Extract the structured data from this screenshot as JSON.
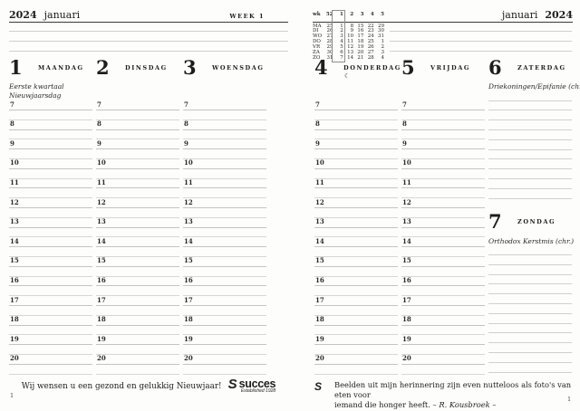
{
  "left_page": {
    "header": {
      "year": "2024",
      "month": "januari",
      "week_label": "WEEK 1"
    },
    "note_line_count": 3,
    "footer": {
      "message": "Wij wensen u een gezond en gelukkig Nieuwjaar!",
      "logo_icon": "S",
      "logo_name": "succes",
      "logo_established": "Established 1928"
    },
    "page_number": "1"
  },
  "right_page": {
    "header": {
      "month": "januari",
      "year": "2024"
    },
    "note_line_count": 3,
    "mini_calendar": {
      "week_header": {
        "label": "wk",
        "values": [
          "52",
          "1",
          "2",
          "3",
          "4",
          "5"
        ]
      },
      "rows": [
        {
          "label": "MA",
          "values": [
            "25",
            "1",
            "8",
            "15",
            "22",
            "29"
          ]
        },
        {
          "label": "DI",
          "values": [
            "26",
            "2",
            "9",
            "16",
            "23",
            "30"
          ]
        },
        {
          "label": "WO",
          "values": [
            "27",
            "3",
            "10",
            "17",
            "24",
            "31"
          ]
        },
        {
          "label": "DO",
          "values": [
            "28",
            "4",
            "11",
            "18",
            "25",
            "1"
          ]
        },
        {
          "label": "VR",
          "values": [
            "29",
            "5",
            "12",
            "19",
            "26",
            "2"
          ]
        },
        {
          "label": "ZA",
          "values": [
            "30",
            "6",
            "13",
            "20",
            "27",
            "3"
          ]
        },
        {
          "label": "ZO",
          "values": [
            "31",
            "7",
            "14",
            "21",
            "28",
            "4"
          ]
        }
      ],
      "highlighted_week": "1"
    },
    "footer": {
      "logo_icon": "S",
      "quote_line1": "Beelden uit mijn herinnering zijn even nutteloos als foto's van eten voor",
      "quote_line2": "iemand die honger heeft. – ",
      "quote_author": "R. Kousbroek",
      "quote_suffix": " –"
    },
    "page_number": "1"
  },
  "days": [
    {
      "number": "1",
      "name": "MAANDAG",
      "notes": [
        "Eerste kwartaal",
        "Nieuwjaarsdag"
      ],
      "layout": "hours"
    },
    {
      "number": "2",
      "name": "DINSDAG",
      "notes": [],
      "layout": "hours"
    },
    {
      "number": "3",
      "name": "WOENSDAG",
      "notes": [],
      "layout": "hours"
    },
    {
      "number": "4",
      "name": "DONDERDAG",
      "notes": [],
      "layout": "hours",
      "moon_symbol": "☾"
    },
    {
      "number": "5",
      "name": "VRIJDAG",
      "notes": [],
      "layout": "hours"
    },
    {
      "number": "6",
      "name": "ZATERDAG",
      "notes": [
        "Driekoningen/Epifanie (chr.)"
      ],
      "layout": "lines",
      "line_count": 11
    },
    {
      "number": "7",
      "name": "ZONDAG",
      "notes": [
        "Orthodox Kerstmis (chr.)"
      ],
      "layout": "lines",
      "line_count": 13
    }
  ],
  "hours": [
    "7",
    "8",
    "9",
    "10",
    "11",
    "12",
    "13",
    "14",
    "15",
    "16",
    "17",
    "18",
    "19",
    "20"
  ]
}
